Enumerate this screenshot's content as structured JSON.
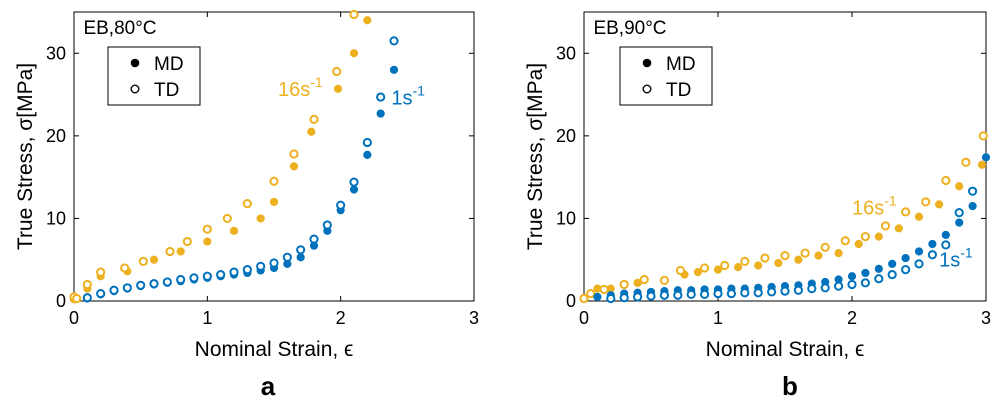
{
  "colors": {
    "orange": "#EDB120",
    "blue": "#0072BD",
    "axis": "#000000"
  },
  "chart_data": [
    {
      "type": "scatter",
      "panel_label": "a",
      "title": "EB,80°C",
      "xlabel": "Nominal Strain, ϵ",
      "ylabel": "True Stress, σ[MPa]",
      "xlim": [
        0,
        3
      ],
      "ylim": [
        0,
        35
      ],
      "xticks": [
        "0",
        "1",
        "2",
        "3"
      ],
      "yticks": [
        "0",
        "10",
        "20",
        "30"
      ],
      "legend": {
        "position": "top-left",
        "entries": [
          {
            "label": "MD",
            "marker": "filled"
          },
          {
            "label": "TD",
            "marker": "open"
          }
        ]
      },
      "annotations": [
        {
          "base": "16s",
          "sup": "-1",
          "color": "orange",
          "x": 1.53,
          "y": 24.8
        },
        {
          "base": "1s",
          "sup": "-1",
          "color": "blue",
          "x": 2.38,
          "y": 23.8
        }
      ],
      "series": [
        {
          "name": "16s-1 MD",
          "color": "orange",
          "marker": "filled",
          "x": [
            0.0,
            0.1,
            0.2,
            0.4,
            0.6,
            0.8,
            1.0,
            1.2,
            1.4,
            1.5,
            1.65,
            1.78,
            1.98,
            2.1,
            2.2
          ],
          "y": [
            0.2,
            1.5,
            3.0,
            3.6,
            5.0,
            6.0,
            7.2,
            8.5,
            10.0,
            12.0,
            16.3,
            20.5,
            25.7,
            30.0,
            34.0
          ]
        },
        {
          "name": "16s-1 TD",
          "color": "orange",
          "marker": "open",
          "x": [
            0.0,
            0.02,
            0.1,
            0.2,
            0.38,
            0.52,
            0.72,
            0.85,
            1.0,
            1.15,
            1.3,
            1.5,
            1.65,
            1.8,
            1.97,
            2.1
          ],
          "y": [
            0.5,
            0.3,
            2.0,
            3.5,
            4.0,
            4.8,
            6.0,
            7.2,
            8.7,
            10.0,
            11.8,
            14.5,
            17.8,
            22.0,
            27.8,
            34.7
          ]
        },
        {
          "name": "1s-1 MD",
          "color": "blue",
          "marker": "filled",
          "x": [
            0.1,
            0.2,
            0.3,
            0.4,
            0.5,
            0.6,
            0.7,
            0.8,
            0.9,
            1.0,
            1.1,
            1.2,
            1.3,
            1.4,
            1.5,
            1.6,
            1.7,
            1.8,
            1.9,
            2.0,
            2.1,
            2.2,
            2.3,
            2.4
          ],
          "y": [
            0.3,
            0.8,
            1.2,
            1.5,
            1.8,
            2.0,
            2.2,
            2.4,
            2.6,
            2.8,
            3.0,
            3.2,
            3.4,
            3.7,
            4.0,
            4.5,
            5.3,
            6.7,
            8.5,
            11.0,
            13.5,
            17.7,
            22.7,
            28.0
          ]
        },
        {
          "name": "1s-1 TD",
          "color": "blue",
          "marker": "open",
          "x": [
            0.1,
            0.2,
            0.3,
            0.4,
            0.5,
            0.6,
            0.7,
            0.8,
            0.9,
            1.0,
            1.1,
            1.2,
            1.3,
            1.4,
            1.5,
            1.6,
            1.7,
            1.8,
            1.9,
            2.0,
            2.1,
            2.2,
            2.3,
            2.4
          ],
          "y": [
            0.4,
            0.9,
            1.3,
            1.6,
            1.9,
            2.1,
            2.3,
            2.6,
            2.8,
            3.0,
            3.2,
            3.5,
            3.8,
            4.2,
            4.6,
            5.3,
            6.2,
            7.5,
            9.2,
            11.6,
            14.4,
            19.2,
            24.7,
            31.5
          ]
        }
      ]
    },
    {
      "type": "scatter",
      "panel_label": "b",
      "title": "EB,90°C",
      "xlabel": "Nominal Strain, ϵ",
      "ylabel": "True Stress, σ[MPa]",
      "xlim": [
        0,
        3
      ],
      "ylim": [
        0,
        35
      ],
      "xticks": [
        "0",
        "1",
        "2",
        "3"
      ],
      "yticks": [
        "0",
        "10",
        "20",
        "30"
      ],
      "legend": {
        "position": "top-left",
        "entries": [
          {
            "label": "MD",
            "marker": "filled"
          },
          {
            "label": "TD",
            "marker": "open"
          }
        ]
      },
      "annotations": [
        {
          "base": "16s",
          "sup": "-1",
          "color": "orange",
          "x": 2.0,
          "y": 10.5
        },
        {
          "base": "1s",
          "sup": "-1",
          "color": "blue",
          "x": 2.65,
          "y": 4.2
        }
      ],
      "series": [
        {
          "name": "16s-1 MD",
          "color": "orange",
          "marker": "filled",
          "x": [
            0.0,
            0.1,
            0.2,
            0.4,
            0.6,
            0.75,
            0.85,
            1.0,
            1.15,
            1.3,
            1.45,
            1.6,
            1.75,
            1.9,
            2.05,
            2.2,
            2.35,
            2.5,
            2.65,
            2.8,
            2.97
          ],
          "y": [
            0.3,
            1.5,
            1.5,
            2.2,
            2.5,
            3.2,
            3.5,
            3.8,
            4.1,
            4.3,
            4.6,
            5.0,
            5.5,
            5.8,
            6.9,
            7.8,
            8.8,
            10.2,
            11.7,
            13.9,
            16.5
          ]
        },
        {
          "name": "16s-1 TD",
          "color": "orange",
          "marker": "open",
          "x": [
            0.0,
            0.05,
            0.15,
            0.3,
            0.45,
            0.6,
            0.72,
            0.9,
            1.05,
            1.2,
            1.35,
            1.5,
            1.65,
            1.8,
            1.95,
            2.1,
            2.25,
            2.4,
            2.55,
            2.7,
            2.85,
            2.98
          ],
          "y": [
            0.3,
            0.9,
            1.4,
            2.0,
            2.6,
            2.5,
            3.7,
            4.0,
            4.3,
            4.8,
            5.2,
            5.5,
            5.8,
            6.5,
            7.3,
            7.8,
            9.1,
            10.8,
            12.0,
            14.6,
            16.8,
            20.0
          ]
        },
        {
          "name": "1s-1 MD",
          "color": "blue",
          "marker": "filled",
          "x": [
            0.1,
            0.2,
            0.3,
            0.4,
            0.5,
            0.6,
            0.7,
            0.8,
            0.9,
            1.0,
            1.1,
            1.2,
            1.3,
            1.4,
            1.5,
            1.6,
            1.7,
            1.8,
            1.9,
            2.0,
            2.1,
            2.2,
            2.3,
            2.4,
            2.5,
            2.6,
            2.7,
            2.8,
            2.9,
            3.0
          ],
          "y": [
            0.5,
            0.7,
            0.9,
            1.0,
            1.1,
            1.2,
            1.3,
            1.3,
            1.4,
            1.4,
            1.5,
            1.5,
            1.6,
            1.7,
            1.8,
            1.9,
            2.1,
            2.3,
            2.6,
            3.0,
            3.4,
            3.9,
            4.5,
            5.2,
            6.0,
            6.9,
            8.0,
            9.5,
            11.5,
            17.4
          ]
        },
        {
          "name": "1s-1 TD",
          "color": "blue",
          "marker": "open",
          "x": [
            0.2,
            0.3,
            0.4,
            0.5,
            0.6,
            0.7,
            0.8,
            0.9,
            1.0,
            1.1,
            1.2,
            1.3,
            1.4,
            1.5,
            1.6,
            1.7,
            1.8,
            1.9,
            2.0,
            2.1,
            2.2,
            2.3,
            2.4,
            2.5,
            2.6,
            2.7,
            2.8,
            2.9
          ],
          "y": [
            0.3,
            0.4,
            0.5,
            0.6,
            0.7,
            0.7,
            0.8,
            0.8,
            0.9,
            0.9,
            1.0,
            1.0,
            1.1,
            1.2,
            1.3,
            1.5,
            1.6,
            1.8,
            2.0,
            2.2,
            2.7,
            3.2,
            3.8,
            4.5,
            5.6,
            6.8,
            10.7,
            13.3
          ]
        }
      ]
    }
  ]
}
